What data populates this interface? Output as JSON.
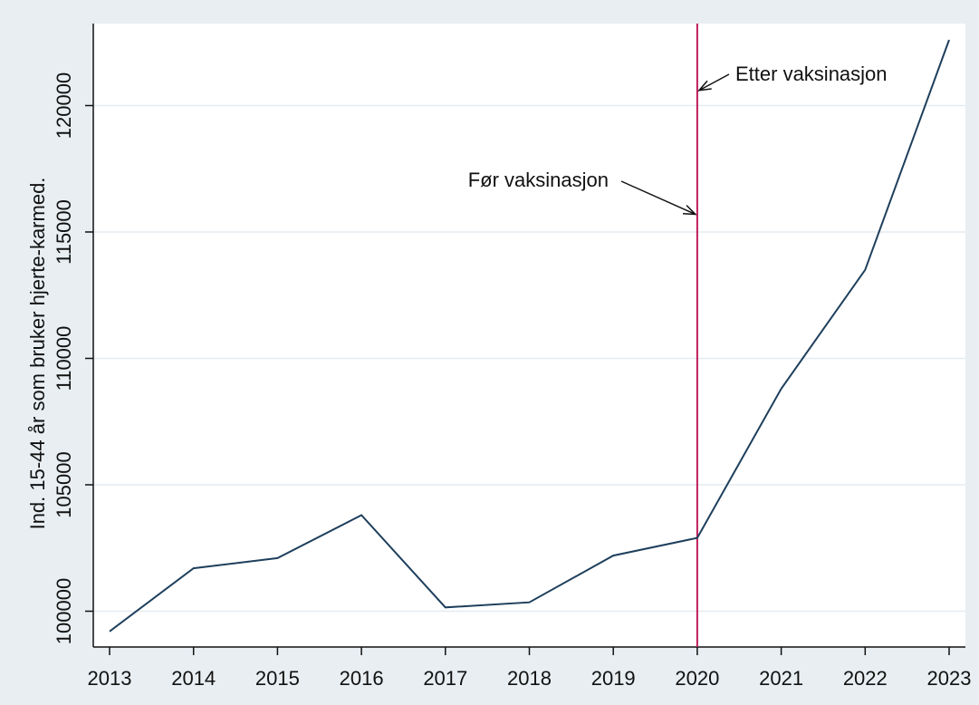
{
  "chart_data": {
    "type": "line",
    "title": "",
    "xlabel": "",
    "ylabel": "Ind. 15-44 år som bruker hjerte-karmed.",
    "x": [
      2013,
      2014,
      2015,
      2016,
      2017,
      2018,
      2019,
      2020,
      2021,
      2022,
      2023
    ],
    "series": [
      {
        "values": [
          99200,
          101700,
          102100,
          103800,
          100150,
          100350,
          102200,
          102900,
          108800,
          113500,
          122600
        ]
      }
    ],
    "x_ticks": [
      "2013",
      "2014",
      "2015",
      "2016",
      "2017",
      "2018",
      "2019",
      "2020",
      "2021",
      "2022",
      "2023"
    ],
    "y_ticks": [
      "100000",
      "105000",
      "110000",
      "115000",
      "120000"
    ],
    "xlim": [
      2013,
      2023
    ],
    "ylim": [
      98500,
      123500
    ],
    "grid": true,
    "reference_line": {
      "x": 2020
    },
    "annotations": [
      {
        "text": "Før vaksinasjon",
        "point_x": 2020,
        "point_y": 115700
      },
      {
        "text": "Etter vaksinasjon",
        "point_x": 2020,
        "point_y": 120600
      }
    ]
  },
  "colors": {
    "background": "#e8eef2",
    "plot_area": "#ffffff",
    "grid": "#e4ecf0",
    "line": "#1e3f5c",
    "reference_line": "#c01c5a",
    "axis": "#111111"
  }
}
